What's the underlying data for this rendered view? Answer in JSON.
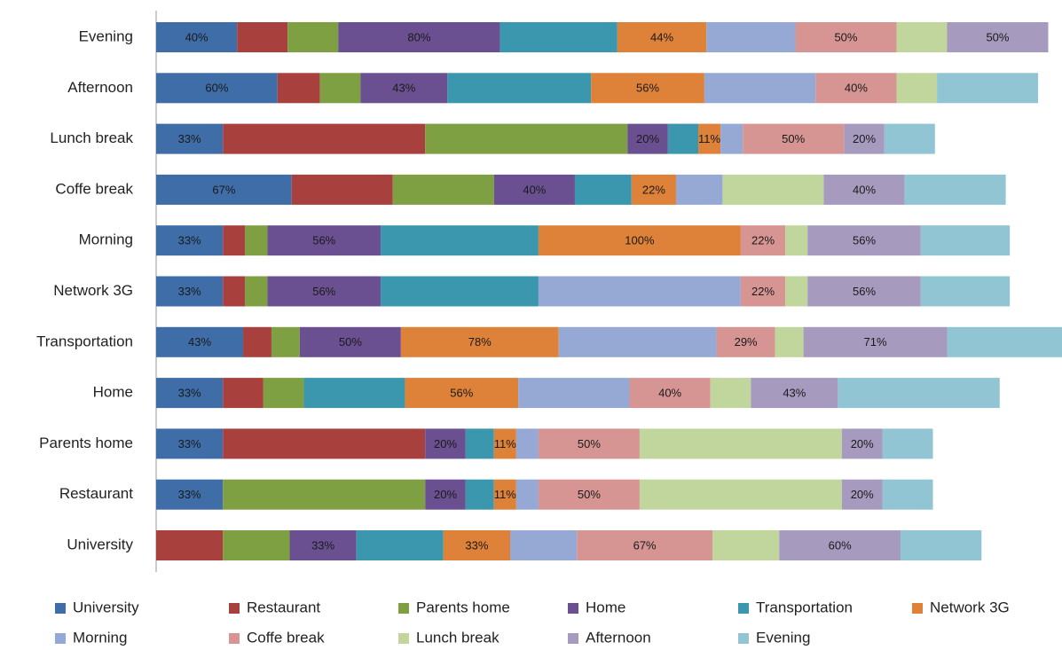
{
  "chart_data": {
    "type": "stacked_barh",
    "categories": [
      "Evening",
      "Afternoon",
      "Lunch break",
      "Coffe break",
      "Morning",
      "Network 3G",
      "Transportation",
      "Home",
      "Parents home",
      "Restaurant",
      "University"
    ],
    "series": [
      {
        "name": "University",
        "color": "#3E6DA8",
        "values": [
          40,
          60,
          33,
          67,
          33,
          33,
          43,
          33,
          33,
          33,
          0
        ],
        "value_labels": [
          "40%",
          "60%",
          "33%",
          "67%",
          "33%",
          "33%",
          "43%",
          "33%",
          "33%",
          "33%",
          null
        ]
      },
      {
        "name": "Restaurant",
        "color": "#A8413E",
        "values": [
          25,
          21,
          100,
          50,
          11,
          11,
          14,
          20,
          100,
          0,
          33
        ]
      },
      {
        "name": "Parents home",
        "color": "#7EA042",
        "values": [
          25,
          20,
          100,
          50,
          11,
          11,
          14,
          20,
          0,
          100,
          33
        ]
      },
      {
        "name": "Home",
        "color": "#6B5091",
        "values": [
          80,
          43,
          20,
          40,
          56,
          56,
          50,
          0,
          20,
          20,
          33
        ],
        "value_labels": [
          "80%",
          "43%",
          "20%",
          "40%",
          "56%",
          "56%",
          "50%",
          null,
          "20%",
          "20%",
          "33%"
        ]
      },
      {
        "name": "Transportation",
        "color": "#3A97AE",
        "values": [
          58,
          71,
          15,
          28,
          78,
          78,
          0,
          50,
          14,
          14,
          43
        ]
      },
      {
        "name": "Network 3G",
        "color": "#DE8139",
        "values": [
          44,
          56,
          11,
          22,
          100,
          0,
          78,
          56,
          11,
          11,
          33
        ],
        "value_labels": [
          "44%",
          "56%",
          "11%",
          "22%",
          "100%",
          null,
          "78%",
          "56%",
          "11%",
          "11%",
          "33%"
        ]
      },
      {
        "name": "Morning",
        "color": "#95A9D4",
        "values": [
          44,
          55,
          11,
          23,
          0,
          100,
          78,
          55,
          11,
          11,
          33
        ]
      },
      {
        "name": "Coffe break",
        "color": "#D69593",
        "values": [
          50,
          40,
          50,
          0,
          22,
          22,
          29,
          40,
          50,
          50,
          67
        ],
        "value_labels": [
          "50%",
          "40%",
          "50%",
          null,
          "22%",
          "22%",
          "29%",
          "40%",
          "50%",
          "50%",
          "67%"
        ]
      },
      {
        "name": "Lunch break",
        "color": "#C1D69C",
        "values": [
          25,
          20,
          0,
          50,
          11,
          11,
          14,
          20,
          100,
          100,
          33
        ]
      },
      {
        "name": "Afternoon",
        "color": "#A79ABF",
        "values": [
          50,
          0,
          20,
          40,
          56,
          56,
          71,
          43,
          20,
          20,
          60
        ],
        "value_labels": [
          "50%",
          null,
          "20%",
          "40%",
          "56%",
          "56%",
          "71%",
          "43%",
          "20%",
          "20%",
          "60%"
        ]
      },
      {
        "name": "Evening",
        "color": "#92C5D3",
        "values": [
          0,
          50,
          25,
          50,
          44,
          44,
          57,
          80,
          25,
          25,
          40
        ]
      }
    ]
  }
}
